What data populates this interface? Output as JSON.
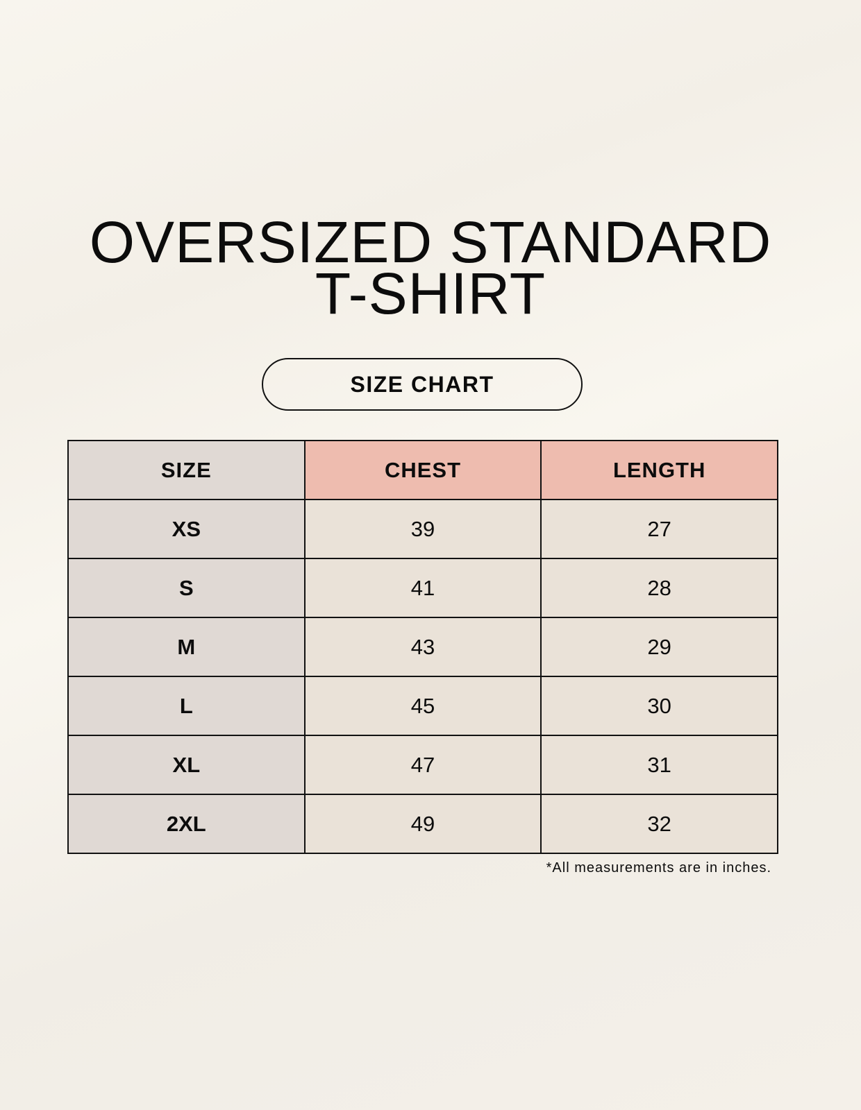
{
  "title": {
    "line1": "OVERSIZED STANDARD",
    "line2": "T-SHIRT"
  },
  "badge": "SIZE CHART",
  "table": {
    "headers": [
      "SIZE",
      "CHEST",
      "LENGTH"
    ],
    "rows": [
      [
        "XS",
        "39",
        "27"
      ],
      [
        "S",
        "41",
        "28"
      ],
      [
        "M",
        "43",
        "29"
      ],
      [
        "L",
        "45",
        "30"
      ],
      [
        "XL",
        "47",
        "31"
      ],
      [
        "2XL",
        "49",
        "32"
      ]
    ]
  },
  "footnote": "*All measurements are in inches.",
  "colors": {
    "header_accent": "#eebcaf",
    "size_column": "#e0d9d4",
    "cell": "#eae2d8"
  }
}
